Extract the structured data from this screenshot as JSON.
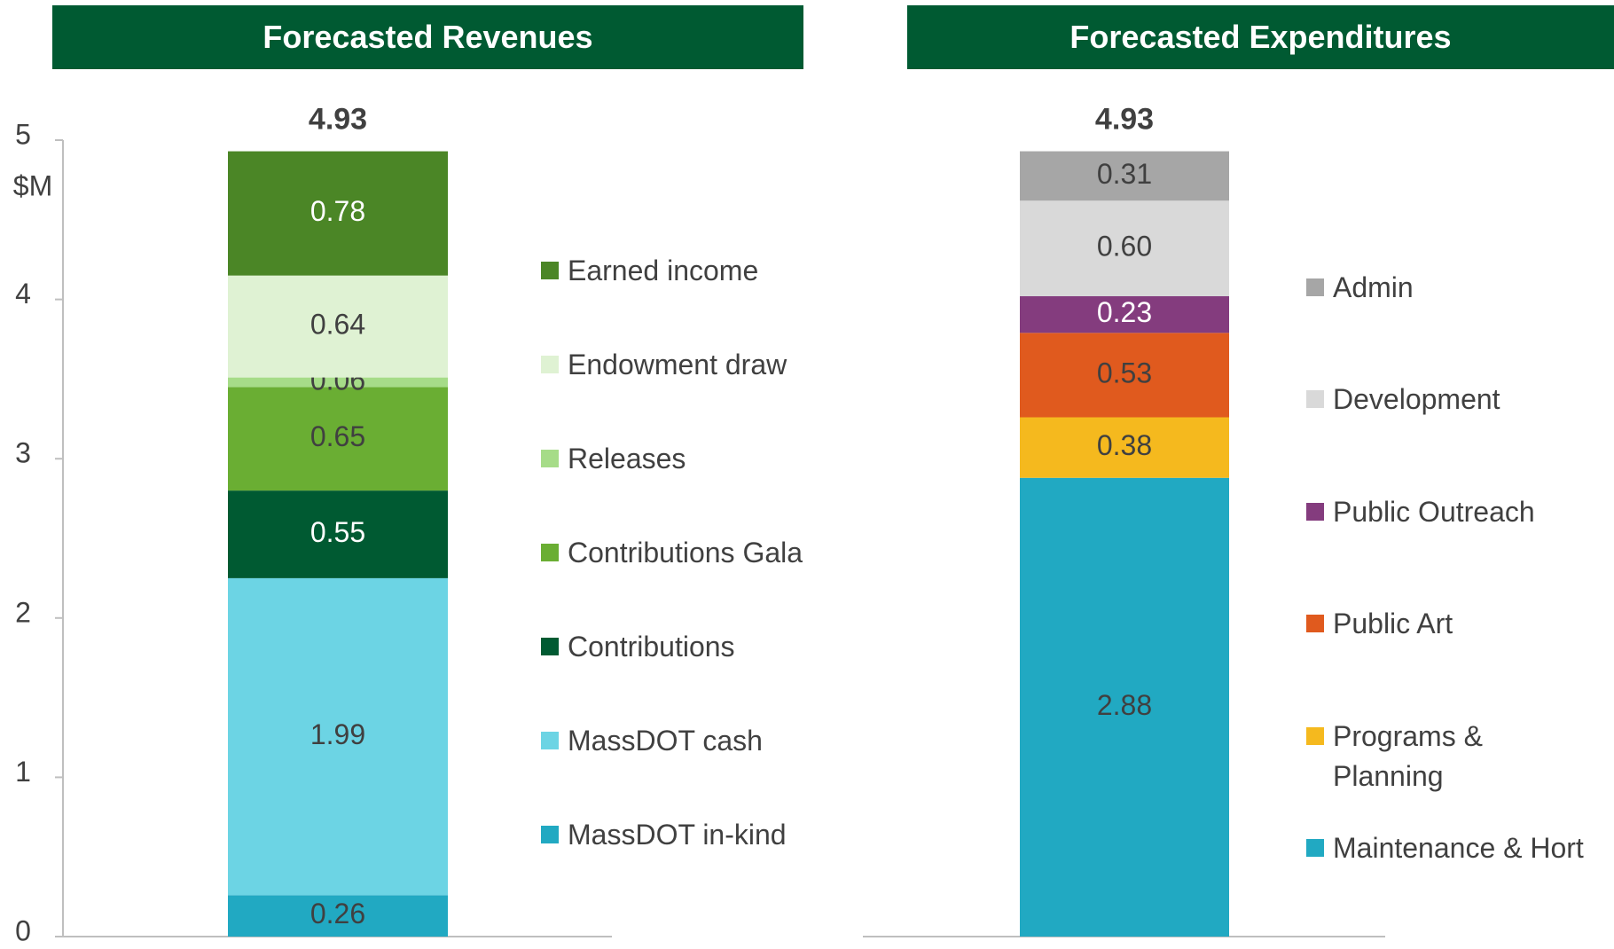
{
  "chart_data": [
    {
      "type": "stacked-bar",
      "title": "Forecasted Revenues",
      "total": 4.93,
      "y_label": "$M",
      "ylim": [
        0,
        5
      ],
      "yticks": [
        0,
        1,
        2,
        3,
        4,
        5
      ],
      "series": [
        {
          "name": "MassDOT in-kind",
          "color": "#21a9c2",
          "label_color": "#404040",
          "values": [
            0.26
          ]
        },
        {
          "name": "MassDOT cash",
          "color": "#6cd4e4",
          "label_color": "#404040",
          "values": [
            1.99
          ]
        },
        {
          "name": "Contributions",
          "color": "#005a32",
          "label_color": "#ffffff",
          "values": [
            0.55
          ]
        },
        {
          "name": "Contributions Gala",
          "color": "#6aae33",
          "label_color": "#404040",
          "values": [
            0.65
          ]
        },
        {
          "name": "Releases",
          "color": "#a6dc88",
          "label_color": "#404040",
          "values": [
            0.06
          ]
        },
        {
          "name": "Endowment draw",
          "color": "#dff2d3",
          "label_color": "#404040",
          "values": [
            0.64
          ]
        },
        {
          "name": "Earned income",
          "color": "#4b8626",
          "label_color": "#ffffff",
          "values": [
            0.78
          ]
        }
      ]
    },
    {
      "type": "stacked-bar",
      "title": "Forecasted Expenditures",
      "total": 4.93,
      "ylim": [
        0,
        5
      ],
      "series": [
        {
          "name": "Maintenance & Hort",
          "color": "#21a9c2",
          "label_color": "#404040",
          "values": [
            2.88
          ]
        },
        {
          "name": "Programs & Planning",
          "color": "#f5b91e",
          "label_color": "#404040",
          "values": [
            0.38
          ]
        },
        {
          "name": "Public Art",
          "color": "#e05a1e",
          "label_color": "#404040",
          "values": [
            0.53
          ]
        },
        {
          "name": "Public Outreach",
          "color": "#843c7e",
          "label_color": "#ffffff",
          "values": [
            0.23
          ]
        },
        {
          "name": "Development",
          "color": "#d9d9d9",
          "label_color": "#404040",
          "values": [
            0.6
          ],
          "value_labels": [
            "0.60"
          ]
        },
        {
          "name": "Admin",
          "color": "#a6a6a6",
          "label_color": "#404040",
          "values": [
            0.31
          ]
        }
      ]
    }
  ]
}
